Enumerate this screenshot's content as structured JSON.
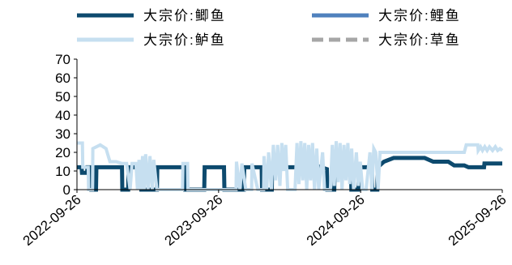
{
  "chart_data": {
    "type": "line",
    "title": "",
    "xlabel": "",
    "ylabel": "",
    "ylim": [
      0,
      70
    ],
    "yticks": [
      0,
      10,
      20,
      30,
      40,
      50,
      60,
      70
    ],
    "xlim": [
      "2022-09-26",
      "2025-09-26"
    ],
    "xticks": [
      "2022-09-26",
      "2023-09-26",
      "2024-09-26",
      "2025-09-26"
    ],
    "grid": false,
    "legend": "top",
    "series": [
      {
        "name": "大宗价:鲫鱼",
        "color": "#0d4a6e",
        "dash": "solid",
        "points": [
          [
            "2022-09-26",
            12
          ],
          [
            "2022-10-08",
            12
          ],
          [
            "2022-10-09",
            9
          ],
          [
            "2022-10-22",
            9
          ],
          [
            "2022-10-23",
            12
          ],
          [
            "2022-11-01",
            12
          ],
          [
            "2022-11-02",
            0
          ],
          [
            "2022-11-14",
            0
          ],
          [
            "2022-11-15",
            12
          ],
          [
            "2023-01-20",
            12
          ],
          [
            "2023-01-21",
            0
          ],
          [
            "2023-02-05",
            0
          ],
          [
            "2023-02-06",
            12
          ],
          [
            "2023-03-10",
            12
          ],
          [
            "2023-03-11",
            0
          ],
          [
            "2023-04-20",
            0
          ],
          [
            "2023-04-21",
            12
          ],
          [
            "2023-07-01",
            12
          ],
          [
            "2023-07-02",
            0
          ],
          [
            "2023-08-20",
            0
          ],
          [
            "2023-08-21",
            12
          ],
          [
            "2023-10-10",
            12
          ],
          [
            "2023-10-11",
            0
          ],
          [
            "2023-11-30",
            0
          ],
          [
            "2023-12-01",
            12
          ],
          [
            "2024-01-15",
            12
          ],
          [
            "2024-01-16",
            0
          ],
          [
            "2024-02-10",
            0
          ],
          [
            "2024-02-11",
            12
          ],
          [
            "2024-04-20",
            12
          ],
          [
            "2024-06-01",
            13
          ],
          [
            "2024-07-01",
            11
          ],
          [
            "2024-07-02",
            0
          ],
          [
            "2024-07-20",
            0
          ],
          [
            "2024-07-21",
            12
          ],
          [
            "2024-09-01",
            12
          ],
          [
            "2024-09-02",
            0
          ],
          [
            "2024-09-20",
            0
          ],
          [
            "2024-09-21",
            12
          ],
          [
            "2024-10-25",
            12
          ],
          [
            "2024-10-26",
            0
          ],
          [
            "2024-11-08",
            0
          ],
          [
            "2024-11-09",
            12
          ],
          [
            "2024-11-25",
            15
          ],
          [
            "2024-12-20",
            17
          ],
          [
            "2025-03-10",
            17
          ],
          [
            "2025-04-01",
            15
          ],
          [
            "2025-05-10",
            15
          ],
          [
            "2025-05-25",
            13
          ],
          [
            "2025-06-20",
            13
          ],
          [
            "2025-07-01",
            12
          ],
          [
            "2025-08-10",
            12
          ],
          [
            "2025-08-11",
            14
          ],
          [
            "2025-09-26",
            14
          ]
        ]
      },
      {
        "name": "大宗价:鲤鱼",
        "color": "#4f81bd",
        "dash": "solid",
        "points": []
      },
      {
        "name": "大宗价:鲈鱼",
        "color": "#c6dff0",
        "dash": "solid",
        "points": [
          [
            "2022-09-26",
            25
          ],
          [
            "2022-10-10",
            25
          ],
          [
            "2022-10-11",
            12
          ],
          [
            "2022-10-25",
            12
          ],
          [
            "2022-10-26",
            0
          ],
          [
            "2022-11-05",
            0
          ],
          [
            "2022-11-06",
            22
          ],
          [
            "2022-11-25",
            24
          ],
          [
            "2022-12-10",
            22
          ],
          [
            "2022-12-20",
            15
          ],
          [
            "2023-01-05",
            15
          ],
          [
            "2023-01-20",
            14
          ],
          [
            "2023-02-01",
            14
          ],
          [
            "2023-02-10",
            0
          ],
          [
            "2023-02-15",
            14
          ],
          [
            "2023-02-25",
            14
          ],
          [
            "2023-03-01",
            0
          ],
          [
            "2023-03-05",
            16
          ],
          [
            "2023-03-10",
            0
          ],
          [
            "2023-03-14",
            18
          ],
          [
            "2023-03-18",
            0
          ],
          [
            "2023-03-22",
            19
          ],
          [
            "2023-03-28",
            0
          ],
          [
            "2023-04-02",
            18
          ],
          [
            "2023-04-08",
            0
          ],
          [
            "2023-04-12",
            16
          ],
          [
            "2023-04-20",
            0
          ],
          [
            "2023-06-25",
            0
          ],
          [
            "2023-06-26",
            14
          ],
          [
            "2023-07-08",
            14
          ],
          [
            "2023-07-09",
            0
          ],
          [
            "2023-11-10",
            0
          ],
          [
            "2023-11-11",
            15
          ],
          [
            "2023-11-20",
            0
          ],
          [
            "2023-11-25",
            14
          ],
          [
            "2023-12-05",
            0
          ],
          [
            "2023-12-20",
            0
          ],
          [
            "2023-12-21",
            14
          ],
          [
            "2024-01-05",
            0
          ],
          [
            "2024-01-20",
            0
          ],
          [
            "2024-01-21",
            18
          ],
          [
            "2024-01-28",
            0
          ],
          [
            "2024-02-02",
            20
          ],
          [
            "2024-02-09",
            0
          ],
          [
            "2024-02-14",
            24
          ],
          [
            "2024-02-20",
            5
          ],
          [
            "2024-02-25",
            24
          ],
          [
            "2024-03-02",
            2
          ],
          [
            "2024-03-07",
            25
          ],
          [
            "2024-03-12",
            10
          ],
          [
            "2024-03-17",
            24
          ],
          [
            "2024-03-22",
            0
          ],
          [
            "2024-04-10",
            0
          ],
          [
            "2024-04-15",
            25
          ],
          [
            "2024-04-20",
            3
          ],
          [
            "2024-04-25",
            26
          ],
          [
            "2024-04-30",
            5
          ],
          [
            "2024-05-05",
            25
          ],
          [
            "2024-05-10",
            0
          ],
          [
            "2024-05-15",
            24
          ],
          [
            "2024-05-20",
            5
          ],
          [
            "2024-05-25",
            25
          ],
          [
            "2024-05-30",
            0
          ],
          [
            "2024-06-05",
            22
          ],
          [
            "2024-06-10",
            0
          ],
          [
            "2024-06-20",
            20
          ],
          [
            "2024-06-25",
            0
          ],
          [
            "2024-07-10",
            0
          ],
          [
            "2024-07-15",
            24
          ],
          [
            "2024-07-20",
            2
          ],
          [
            "2024-07-25",
            26
          ],
          [
            "2024-07-30",
            4
          ],
          [
            "2024-08-04",
            25
          ],
          [
            "2024-08-09",
            0
          ],
          [
            "2024-08-14",
            24
          ],
          [
            "2024-08-19",
            5
          ],
          [
            "2024-08-24",
            25
          ],
          [
            "2024-08-29",
            3
          ],
          [
            "2024-09-03",
            22
          ],
          [
            "2024-09-08",
            0
          ],
          [
            "2024-09-15",
            20
          ],
          [
            "2024-09-20",
            2
          ],
          [
            "2024-09-25",
            15
          ],
          [
            "2024-10-01",
            0
          ],
          [
            "2024-10-10",
            0
          ],
          [
            "2024-10-20",
            20
          ],
          [
            "2024-10-25",
            0
          ],
          [
            "2024-10-30",
            22
          ],
          [
            "2024-11-04",
            20
          ],
          [
            "2024-11-10",
            0
          ],
          [
            "2024-11-15",
            20
          ],
          [
            "2024-12-01",
            20
          ],
          [
            "2025-06-20",
            20
          ],
          [
            "2025-06-25",
            24
          ],
          [
            "2025-07-25",
            24
          ],
          [
            "2025-07-26",
            21
          ],
          [
            "2025-08-01",
            23
          ],
          [
            "2025-08-06",
            21
          ],
          [
            "2025-08-12",
            23
          ],
          [
            "2025-08-18",
            21
          ],
          [
            "2025-08-24",
            23
          ],
          [
            "2025-09-01",
            21
          ],
          [
            "2025-09-08",
            23
          ],
          [
            "2025-09-14",
            21
          ],
          [
            "2025-09-20",
            22
          ],
          [
            "2025-09-26",
            21
          ]
        ]
      },
      {
        "name": "大宗价:草鱼",
        "color": "#a6a6a6",
        "dash": "dashed",
        "points": []
      }
    ]
  }
}
